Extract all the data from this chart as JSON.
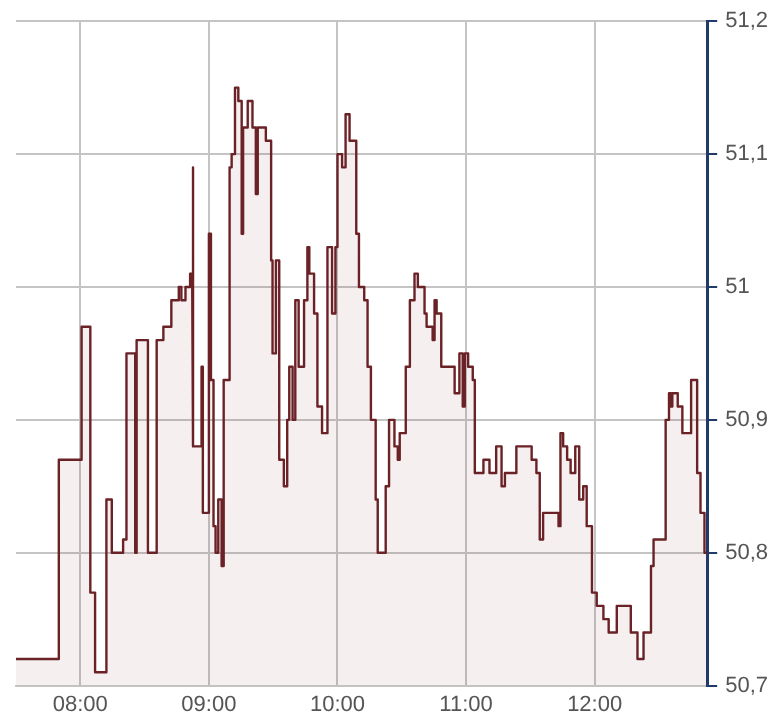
{
  "chart_data": {
    "type": "area",
    "x": [
      7.5,
      7.833,
      7.833,
      8.01,
      8.01,
      8.078,
      8.078,
      8.115,
      8.115,
      8.203,
      8.203,
      8.245,
      8.245,
      8.333,
      8.333,
      8.359,
      8.359,
      8.427,
      8.427,
      8.438,
      8.438,
      8.526,
      8.526,
      8.594,
      8.594,
      8.646,
      8.646,
      8.708,
      8.708,
      8.766,
      8.766,
      8.786,
      8.786,
      8.818,
      8.818,
      8.854,
      8.854,
      8.87,
      8.87,
      8.88,
      8.88,
      8.943,
      8.943,
      8.953,
      8.953,
      9.0,
      9.0,
      9.016,
      9.016,
      9.036,
      9.036,
      9.052,
      9.052,
      9.073,
      9.073,
      9.099,
      9.099,
      9.115,
      9.115,
      9.161,
      9.161,
      9.177,
      9.177,
      9.203,
      9.203,
      9.229,
      9.229,
      9.255,
      9.255,
      9.266,
      9.266,
      9.302,
      9.302,
      9.339,
      9.339,
      9.365,
      9.365,
      9.38,
      9.38,
      9.443,
      9.443,
      9.484,
      9.484,
      9.495,
      9.495,
      9.521,
      9.521,
      9.547,
      9.547,
      9.583,
      9.583,
      9.609,
      9.609,
      9.625,
      9.625,
      9.651,
      9.651,
      9.672,
      9.672,
      9.698,
      9.698,
      9.74,
      9.74,
      9.766,
      9.766,
      9.781,
      9.781,
      9.818,
      9.818,
      9.844,
      9.844,
      9.88,
      9.88,
      9.922,
      9.922,
      9.958,
      9.958,
      9.984,
      9.984,
      10.0,
      10.0,
      10.036,
      10.036,
      10.063,
      10.063,
      10.094,
      10.094,
      10.146,
      10.146,
      10.167,
      10.167,
      10.208,
      10.208,
      10.234,
      10.234,
      10.26,
      10.26,
      10.297,
      10.297,
      10.313,
      10.313,
      10.375,
      10.375,
      10.401,
      10.401,
      10.443,
      10.443,
      10.469,
      10.469,
      10.484,
      10.484,
      10.531,
      10.531,
      10.563,
      10.563,
      10.599,
      10.599,
      10.625,
      10.625,
      10.677,
      10.677,
      10.693,
      10.693,
      10.74,
      10.74,
      10.755,
      10.755,
      10.771,
      10.771,
      10.807,
      10.807,
      10.911,
      10.911,
      10.948,
      10.948,
      10.974,
      10.974,
      10.99,
      10.99,
      11.016,
      11.016,
      11.052,
      11.052,
      11.068,
      11.068,
      11.135,
      11.135,
      11.182,
      11.182,
      11.234,
      11.234,
      11.276,
      11.276,
      11.302,
      11.302,
      11.391,
      11.391,
      11.51,
      11.51,
      11.547,
      11.547,
      11.573,
      11.573,
      11.599,
      11.599,
      11.719,
      11.719,
      11.734,
      11.734,
      11.755,
      11.755,
      11.786,
      11.786,
      11.813,
      11.813,
      11.849,
      11.849,
      11.88,
      11.88,
      11.911,
      11.911,
      11.938,
      11.938,
      11.979,
      11.979,
      12.016,
      12.016,
      12.068,
      12.068,
      12.109,
      12.109,
      12.172,
      12.172,
      12.281,
      12.281,
      12.333,
      12.333,
      12.38,
      12.38,
      12.438,
      12.438,
      12.458,
      12.458,
      12.552,
      12.552,
      12.578,
      12.578,
      12.594,
      12.594,
      12.604,
      12.604,
      12.646,
      12.646,
      12.682,
      12.682,
      12.75,
      12.75,
      12.797,
      12.797,
      12.823,
      12.823,
      12.854,
      12.854,
      12.875
    ],
    "series": [
      {
        "color": "#6b2226",
        "values": [
          50.72,
          50.72,
          50.87,
          50.87,
          50.97,
          50.97,
          50.77,
          50.77,
          50.71,
          50.71,
          50.84,
          50.84,
          50.8,
          50.8,
          50.81,
          50.81,
          50.95,
          50.95,
          50.8,
          50.8,
          50.96,
          50.96,
          50.8,
          50.8,
          50.96,
          50.96,
          50.97,
          50.97,
          50.99,
          50.99,
          51.0,
          51.0,
          50.99,
          50.99,
          51.0,
          51.0,
          51.01,
          51.01,
          51.09,
          51.09,
          50.88,
          50.88,
          50.94,
          50.94,
          50.83,
          50.83,
          51.04,
          51.04,
          50.93,
          50.93,
          50.82,
          50.82,
          50.8,
          50.8,
          50.84,
          50.84,
          50.79,
          50.79,
          50.93,
          50.93,
          51.09,
          51.09,
          51.1,
          51.1,
          51.15,
          51.15,
          51.14,
          51.14,
          51.04,
          51.04,
          51.12,
          51.12,
          51.14,
          51.14,
          51.12,
          51.12,
          51.07,
          51.07,
          51.12,
          51.12,
          51.11,
          51.11,
          51.02,
          51.02,
          50.95,
          50.95,
          51.02,
          51.02,
          50.87,
          50.87,
          50.85,
          50.85,
          50.9,
          50.9,
          50.94,
          50.94,
          50.9,
          50.9,
          50.99,
          50.99,
          50.94,
          50.94,
          50.99,
          50.99,
          51.03,
          51.03,
          51.01,
          51.01,
          50.98,
          50.98,
          50.91,
          50.91,
          50.89,
          50.89,
          51.03,
          51.03,
          50.98,
          50.98,
          51.03,
          51.03,
          51.1,
          51.1,
          51.09,
          51.09,
          51.13,
          51.13,
          51.11,
          51.11,
          51.04,
          51.04,
          51.0,
          51.0,
          50.99,
          50.99,
          50.94,
          50.94,
          50.9,
          50.9,
          50.84,
          50.84,
          50.8,
          50.8,
          50.85,
          50.85,
          50.9,
          50.9,
          50.88,
          50.88,
          50.87,
          50.87,
          50.89,
          50.89,
          50.94,
          50.94,
          50.99,
          50.99,
          51.01,
          51.01,
          51.0,
          51.0,
          50.98,
          50.98,
          50.97,
          50.97,
          50.96,
          50.96,
          50.99,
          50.99,
          50.98,
          50.98,
          50.94,
          50.94,
          50.92,
          50.92,
          50.95,
          50.95,
          50.91,
          50.91,
          50.95,
          50.95,
          50.94,
          50.94,
          50.93,
          50.93,
          50.86,
          50.86,
          50.87,
          50.87,
          50.86,
          50.86,
          50.88,
          50.88,
          50.85,
          50.85,
          50.86,
          50.86,
          50.88,
          50.88,
          50.87,
          50.87,
          50.86,
          50.86,
          50.81,
          50.81,
          50.83,
          50.83,
          50.82,
          50.82,
          50.89,
          50.89,
          50.88,
          50.88,
          50.87,
          50.87,
          50.86,
          50.86,
          50.88,
          50.88,
          50.84,
          50.84,
          50.85,
          50.85,
          50.82,
          50.82,
          50.77,
          50.77,
          50.76,
          50.76,
          50.75,
          50.75,
          50.74,
          50.74,
          50.76,
          50.76,
          50.74,
          50.74,
          50.72,
          50.72,
          50.74,
          50.74,
          50.79,
          50.79,
          50.81,
          50.81,
          50.9,
          50.9,
          50.92,
          50.92,
          50.91,
          50.91,
          50.92,
          50.92,
          50.91,
          50.91,
          50.89,
          50.89,
          50.93,
          50.93,
          50.86,
          50.86,
          50.83,
          50.83,
          50.8,
          50.8
        ]
      }
    ],
    "xlim": [
      7.5,
      12.875
    ],
    "xticks": [
      {
        "value": 8,
        "label": "08:00"
      },
      {
        "value": 9,
        "label": "09:00"
      },
      {
        "value": 10,
        "label": "10:00"
      },
      {
        "value": 11,
        "label": "11:00"
      },
      {
        "value": 12,
        "label": "12:00"
      }
    ],
    "ylim": [
      50.7,
      51.2
    ],
    "yticks": [
      {
        "value": 50.7,
        "label": "50,7"
      },
      {
        "value": 50.8,
        "label": "50,8"
      },
      {
        "value": 50.9,
        "label": "50,9"
      },
      {
        "value": 51,
        "label": "51"
      },
      {
        "value": 51.1,
        "label": "51,1"
      },
      {
        "value": 51.2,
        "label": "51,2"
      }
    ],
    "grid": true,
    "marker": "none",
    "line_style": "solid"
  }
}
